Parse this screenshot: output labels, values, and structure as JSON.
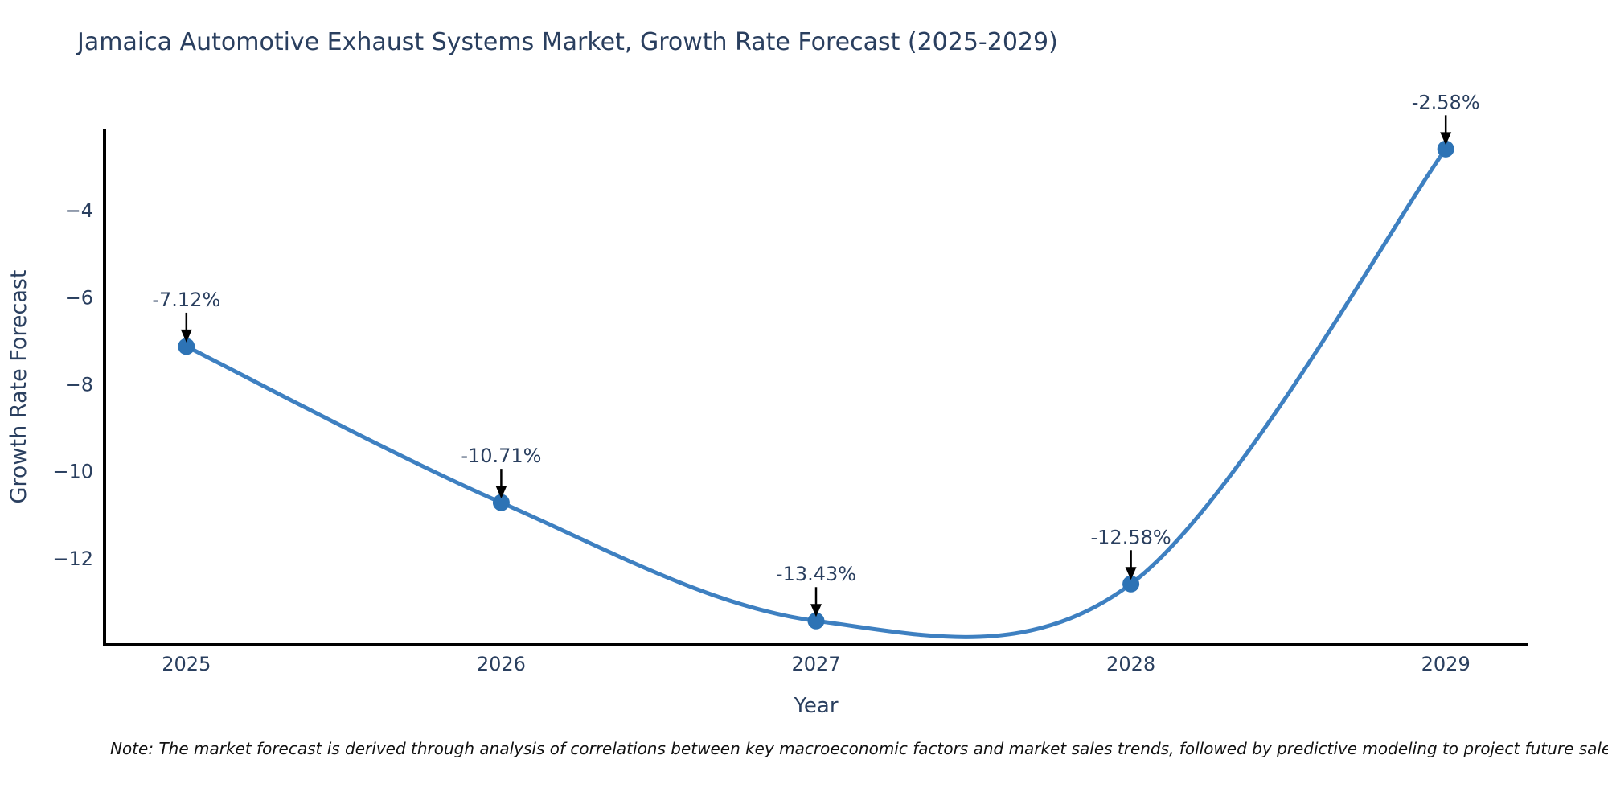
{
  "chart_data": {
    "type": "line",
    "line_shape": "spline",
    "title": "Jamaica Automotive Exhaust Systems Market, Growth Rate Forecast (2025-2029)",
    "xlabel": "Year",
    "ylabel": "Growth Rate Forecast",
    "x": [
      2025,
      2026,
      2027,
      2028,
      2029
    ],
    "series": [
      {
        "name": "Growth Rate Forecast",
        "values": [
          -7.12,
          -10.71,
          -13.43,
          -12.58,
          -2.58
        ]
      }
    ],
    "point_labels": [
      "-7.12%",
      "-10.71%",
      "-13.43%",
      "-12.58%",
      "-2.58%"
    ],
    "x_ticks": [
      "2025",
      "2026",
      "2027",
      "2028",
      "2029"
    ],
    "y_ticks": [
      -4,
      -6,
      -8,
      -10,
      -12
    ],
    "xlim": [
      2024.74,
      2029.26
    ],
    "ylim": [
      -13.98,
      -2.13
    ],
    "grid": false,
    "legend": "none",
    "colors": {
      "line": "#3e80c1",
      "marker": "#2d73b5",
      "axis_line": "#000000",
      "text": "#2a3f5f",
      "annotation_text": "#2a3f5f",
      "annotation_arrow": "#000000"
    }
  },
  "note": {
    "text": "Note: The market forecast is derived through analysis of correlations between key macroeconomic factors and market sales trends, followed by predictive modeling to project future sales."
  }
}
